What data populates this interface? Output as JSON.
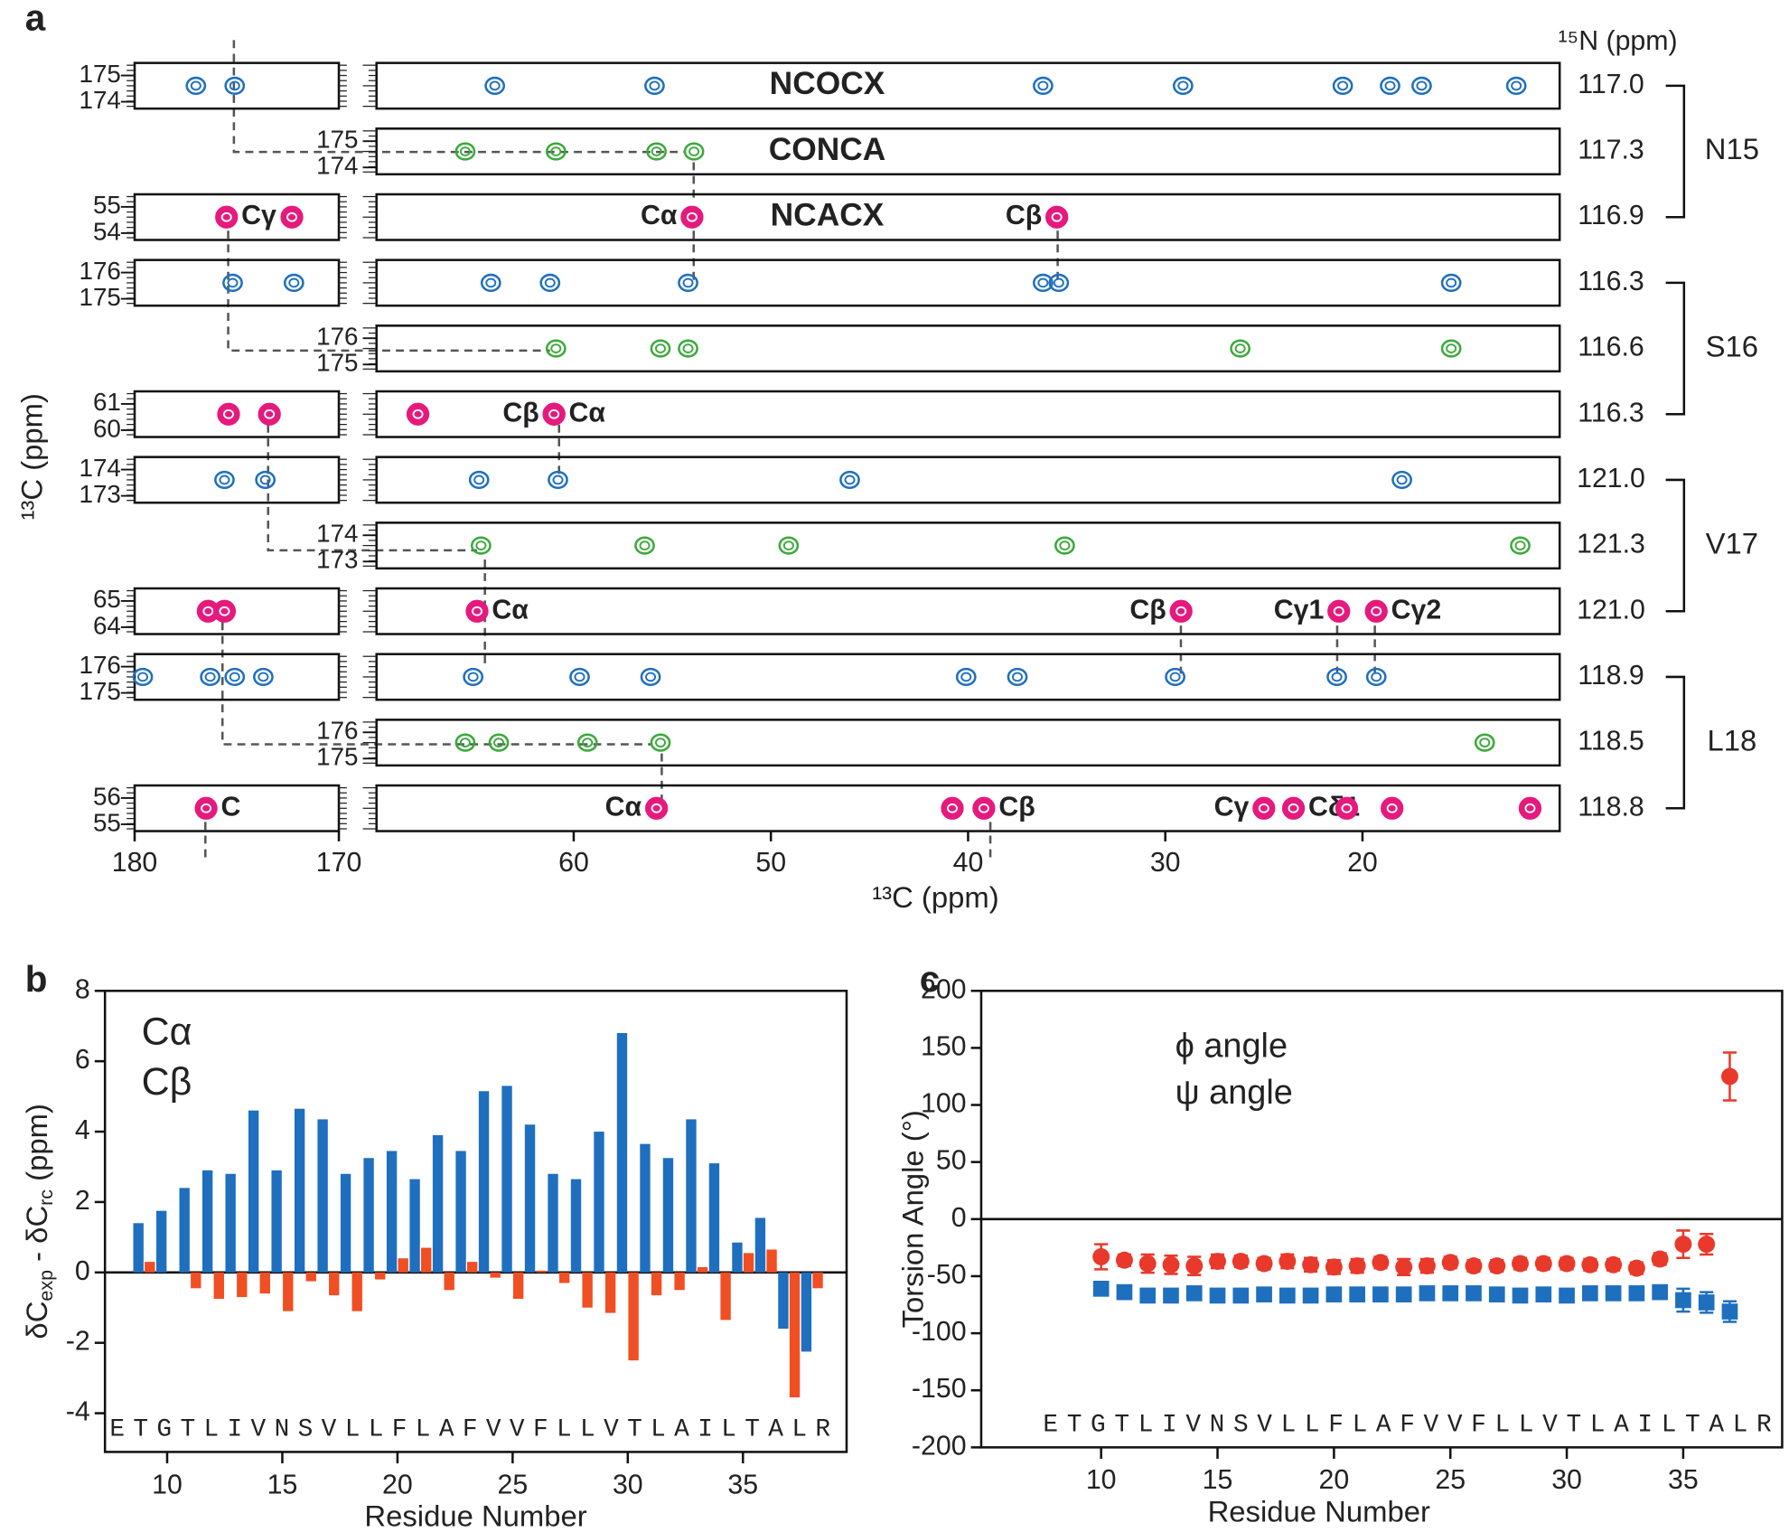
{
  "panel_a": {
    "label": "a",
    "n_axis_title": "¹⁵N (ppm)",
    "x_title": "¹³C (ppm)",
    "y_title": "¹³C (ppm)",
    "experiments": [
      {
        "name": "NCOCX",
        "color": "#1f6fbf"
      },
      {
        "name": "CONCA",
        "color": "#3aaa3a"
      },
      {
        "name": "NCACX",
        "color": "#e6197d"
      }
    ],
    "left_xlim": [
      180,
      170
    ],
    "left_xticks": [
      180,
      170
    ],
    "right_xlim": [
      70,
      10
    ],
    "right_xticks": [
      60,
      50,
      40,
      30,
      20
    ],
    "groups": [
      {
        "name": "N15",
        "rows": [
          {
            "color": "#1f6fbf",
            "n": {
              "value": 117.0,
              "label": "117.0"
            },
            "yticks": [
              175,
              174
            ],
            "left_peaks": [
              177.0,
              175.1
            ],
            "peaks": [
              64.0,
              55.9,
              36.2,
              29.1,
              21.0,
              18.6,
              17.0,
              12.2
            ]
          },
          {
            "color": "#3aaa3a",
            "n": {
              "value": 117.3,
              "label": "117.3"
            },
            "yticks": [
              175,
              174
            ],
            "peaks": [
              65.5,
              60.9,
              55.8,
              53.9
            ]
          },
          {
            "color": "#e6197d",
            "n": {
              "value": 116.9,
              "label": "116.9"
            },
            "yticks": [
              55,
              54
            ],
            "left_peaks": [
              {
                "x": 175.5,
                "label": "Cγ",
                "label_side": "right"
              },
              172.3
            ],
            "peaks": [
              {
                "x": 54.0,
                "label": "Cα",
                "label_side": "left"
              },
              {
                "x": 35.5,
                "label": "Cβ",
                "label_side": "left"
              }
            ]
          }
        ]
      },
      {
        "name": "S16",
        "rows": [
          {
            "color": "#1f6fbf",
            "n": {
              "value": 116.3,
              "label": "116.3"
            },
            "yticks": [
              176,
              175
            ],
            "left_peaks": [
              175.2,
              172.2
            ],
            "peaks": [
              64.2,
              61.2,
              54.2,
              36.2,
              35.4,
              15.5
            ]
          },
          {
            "color": "#3aaa3a",
            "n": {
              "value": 116.6,
              "label": "116.6"
            },
            "yticks": [
              176,
              175
            ],
            "peaks": [
              60.9,
              55.6,
              54.2,
              26.2,
              15.5
            ]
          },
          {
            "color": "#e6197d",
            "n": {
              "value": 116.3,
              "label": "116.3"
            },
            "yticks": [
              61,
              60
            ],
            "left_peaks": [
              175.4,
              173.4
            ],
            "peaks": [
              67.9,
              {
                "x": 61.0,
                "label": "Cβ",
                "label_side": "left"
              },
              {
                "x": 61.0,
                "label": "Cα",
                "label_side": "right"
              }
            ]
          }
        ]
      },
      {
        "name": "V17",
        "rows": [
          {
            "color": "#1f6fbf",
            "n": {
              "value": 121.0,
              "label": "121.0"
            },
            "yticks": [
              174,
              173
            ],
            "left_peaks": [
              175.6,
              173.6
            ],
            "peaks": [
              64.8,
              60.8,
              46.0,
              18.0
            ]
          },
          {
            "color": "#3aaa3a",
            "n": {
              "value": 121.3,
              "label": "121.3"
            },
            "yticks": [
              174,
              173
            ],
            "peaks": [
              64.7,
              56.4,
              49.1,
              35.1,
              12.0
            ]
          },
          {
            "color": "#e6197d",
            "n": {
              "value": 121.0,
              "label": "121.0"
            },
            "yticks": [
              65,
              64
            ],
            "left_peaks": [
              176.4,
              175.6
            ],
            "peaks": [
              {
                "x": 64.9,
                "label": "Cα",
                "label_side": "right"
              },
              {
                "x": 29.2,
                "label": "Cβ",
                "label_side": "left"
              },
              {
                "x": 21.2,
                "label": "Cγ1",
                "label_side": "left"
              },
              {
                "x": 19.3,
                "label": "Cγ2",
                "label_side": "right"
              }
            ]
          }
        ]
      },
      {
        "name": "L18",
        "rows": [
          {
            "color": "#1f6fbf",
            "n": {
              "value": 118.9,
              "label": "118.9"
            },
            "yticks": [
              176,
              175
            ],
            "left_peaks": [
              179.6,
              176.3,
              175.1,
              173.7
            ],
            "peaks": [
              65.1,
              59.7,
              56.1,
              40.1,
              37.5,
              29.5,
              21.3,
              19.3
            ]
          },
          {
            "color": "#3aaa3a",
            "n": {
              "value": 118.5,
              "label": "118.5"
            },
            "yticks": [
              176,
              175
            ],
            "peaks": [
              65.5,
              63.8,
              59.3,
              55.6,
              13.8
            ]
          },
          {
            "color": "#e6197d",
            "n": {
              "value": 118.8,
              "label": "118.8"
            },
            "yticks": [
              56,
              55
            ],
            "left_peaks": [
              {
                "x": 176.5,
                "label": "C",
                "label_side": "right"
              }
            ],
            "peaks": [
              {
                "x": 55.8,
                "label": "Cα",
                "label_side": "left"
              },
              40.8,
              {
                "x": 39.2,
                "label": "Cβ",
                "label_side": "right"
              },
              {
                "x": 25.0,
                "label": "Cγ",
                "label_side": "left"
              },
              {
                "x": 23.5,
                "label": "Cδ1",
                "label_side": "right"
              },
              20.8,
              18.5,
              11.5
            ]
          }
        ]
      }
    ]
  },
  "chart_data": [
    {
      "type": "bar",
      "label": "b",
      "ylabel_parts": [
        "δC",
        "exp",
        " - δC",
        "rc",
        " (ppm)"
      ],
      "xlabel": "Residue Number",
      "sequence": "ETGTLIVNSVLLFLAFVVFLLVTLAILTALR",
      "x": [
        9,
        10,
        11,
        12,
        13,
        14,
        15,
        16,
        17,
        18,
        19,
        20,
        21,
        22,
        23,
        24,
        25,
        26,
        27,
        28,
        29,
        30,
        31,
        32,
        33,
        34,
        35,
        36,
        37,
        38
      ],
      "series": [
        {
          "name": "Cα",
          "color": "#1f6fbf",
          "values": [
            1.4,
            1.75,
            2.4,
            2.9,
            2.8,
            4.6,
            2.9,
            4.65,
            4.35,
            2.8,
            3.25,
            3.45,
            2.65,
            3.9,
            3.45,
            5.15,
            5.3,
            4.2,
            2.8,
            2.65,
            4.0,
            6.8,
            3.65,
            3.25,
            4.35,
            3.1,
            0.85,
            1.55,
            -1.6,
            -2.25
          ]
        },
        {
          "name": "Cβ",
          "color": "#f04e23",
          "values": [
            0.3,
            null,
            -0.45,
            -0.75,
            -0.7,
            -0.6,
            -1.1,
            -0.25,
            -0.65,
            -1.1,
            -0.2,
            0.4,
            0.7,
            -0.5,
            0.3,
            -0.15,
            -0.75,
            0.05,
            -0.3,
            -1.0,
            -1.15,
            -2.5,
            -0.65,
            -0.5,
            0.15,
            -1.35,
            0.55,
            0.65,
            -3.55,
            -0.45
          ]
        }
      ],
      "xlim": [
        7.3,
        39.5
      ],
      "xticks": [
        10,
        15,
        20,
        25,
        30,
        35
      ],
      "ylim": [
        -5.1,
        8
      ],
      "yticks": [
        -4,
        -2,
        0,
        2,
        4,
        6,
        8
      ]
    },
    {
      "type": "scatter",
      "label": "c",
      "ylabel": "Torsion Angle (°)",
      "xlabel": "Residue Number",
      "sequence": "ETGTLIVNSVLLFLAFVVFLLVTLAILTALR",
      "x": [
        10,
        11,
        12,
        13,
        14,
        15,
        16,
        17,
        18,
        19,
        20,
        21,
        22,
        23,
        24,
        25,
        26,
        27,
        28,
        29,
        30,
        31,
        32,
        33,
        34,
        35,
        36,
        37
      ],
      "series": [
        {
          "name": "ϕ angle",
          "color": "#1f6fbf",
          "marker": "square",
          "values": [
            -61,
            -64,
            -67,
            -67,
            -65,
            -67,
            -67,
            -66,
            -67,
            -67,
            -66,
            -66,
            -66,
            -66,
            -65,
            -65,
            -65,
            -66,
            -67,
            -66,
            -67,
            -65,
            -65,
            -65,
            -64,
            -71,
            -73,
            -81
          ],
          "errors": [
            4,
            4,
            4,
            4,
            4,
            4,
            4,
            4,
            4,
            4,
            4,
            4,
            4,
            4,
            4,
            4,
            4,
            4,
            4,
            4,
            4,
            4,
            4,
            4,
            4,
            10,
            9,
            9
          ]
        },
        {
          "name": "ψ angle",
          "color": "#e8392b",
          "marker": "circle",
          "values": [
            -33,
            -36,
            -39,
            -40,
            -41,
            -37,
            -37,
            -39,
            -37,
            -40,
            -42,
            -41,
            -38,
            -42,
            -41,
            -38,
            -41,
            -41,
            -39,
            -39,
            -39,
            -40,
            -40,
            -43,
            -35,
            -22,
            -22,
            125
          ],
          "errors": [
            11,
            5,
            8,
            8,
            8,
            6,
            5,
            5,
            6,
            6,
            6,
            6,
            5,
            7,
            6,
            5,
            5,
            5,
            5,
            5,
            5,
            5,
            5,
            5,
            5,
            12,
            9,
            21
          ]
        }
      ],
      "xlim": [
        4.85,
        39.25
      ],
      "xticks": [
        10,
        15,
        20,
        25,
        30,
        35
      ],
      "ylim": [
        -200,
        200
      ],
      "yticks": [
        -200,
        -150,
        -100,
        -50,
        0,
        50,
        100,
        150,
        200
      ],
      "zero_line": true
    }
  ]
}
